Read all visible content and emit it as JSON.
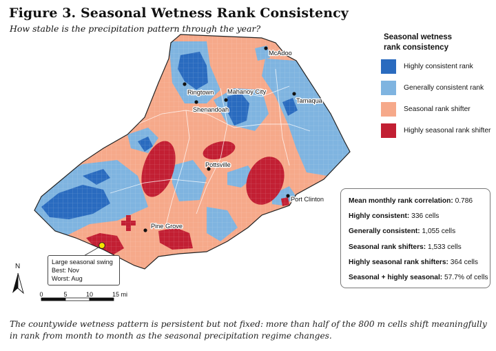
{
  "title": "Figure 3. Seasonal Wetness Rank Consistency",
  "subtitle": "How stable is the precipitation pattern through the year?",
  "legend": {
    "title_line1": "Seasonal wetness",
    "title_line2": "rank consistency",
    "items": [
      {
        "label": "Highly consistent rank",
        "color": "#2a6bbf"
      },
      {
        "label": "Generally consistent rank",
        "color": "#7fb4e0"
      },
      {
        "label": "Seasonal rank shifter",
        "color": "#f6a98a"
      },
      {
        "label": "Highly seasonal rank shifter",
        "color": "#c21f33"
      }
    ]
  },
  "stats": {
    "mean_label": "Mean monthly rank correlation:",
    "mean_value": "0.786",
    "hc_label": "Highly consistent:",
    "hc_value": "336 cells",
    "gc_label": "Generally consistent:",
    "gc_value": "1,055 cells",
    "srs_label": "Seasonal rank shifters:",
    "srs_value": "1,533 cells",
    "hsrs_label": "Highly seasonal rank shifters:",
    "hsrs_value": "364 cells",
    "combined_label": "Seasonal + highly seasonal:",
    "combined_value": "57.7% of cells"
  },
  "towns": [
    {
      "name": "McAdoo"
    },
    {
      "name": "Ringtown"
    },
    {
      "name": "Mahanoy City"
    },
    {
      "name": "Shenandoah"
    },
    {
      "name": "Tamaqua"
    },
    {
      "name": "Pottsville"
    },
    {
      "name": "Port Clinton"
    },
    {
      "name": "Pine Grove"
    }
  ],
  "callout": {
    "line1": "Large seasonal swing",
    "line2": "Best: Nov",
    "line3": "Worst: Aug"
  },
  "north_label": "N",
  "scale": {
    "ticks": [
      "0",
      "5",
      "10",
      "15 mi"
    ]
  },
  "caption": "The countywide wetness pattern is persistent but not fixed: more than half of the 800 m cells shift meaningfully in rank from month to month as the seasonal precipitation regime changes."
}
